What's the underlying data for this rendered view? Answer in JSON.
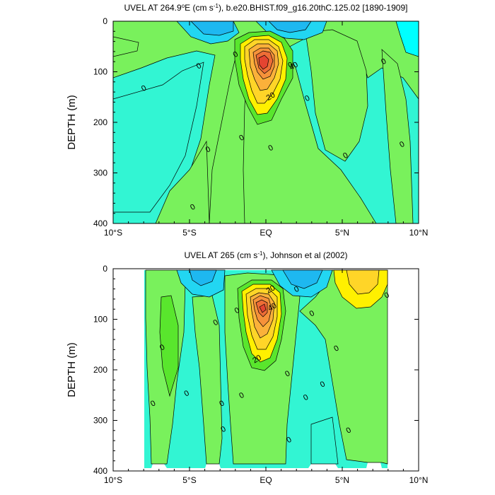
{
  "chart_data": [
    {
      "type": "contour",
      "title_prefix": "UVEL AT 264.9",
      "title_deg": "o",
      "title_mid": "E (cm s",
      "title_exp": "-1",
      "title_suffix": "), b.e20.BHIST.f09_g16.20thC.125.02 [1890-1909]",
      "ylabel": "DEPTH (m)",
      "ylim": [
        0,
        400
      ],
      "yticks": [
        "0",
        "100",
        "200",
        "300",
        "400"
      ],
      "xticks": [
        "10°S",
        "5°S",
        "EQ",
        "5°N",
        "10°N"
      ],
      "x_range": [
        -10,
        10
      ],
      "contour_labels": [
        {
          "text": "40",
          "lat": 1.8,
          "depth": 88
        },
        {
          "text": "20",
          "lat": 0.3,
          "depth": 148
        },
        {
          "text": "0",
          "lat": -8.0,
          "depth": 132
        },
        {
          "text": "0",
          "lat": -4.4,
          "depth": 88
        },
        {
          "text": "0",
          "lat": -2.0,
          "depth": 65
        },
        {
          "text": "0",
          "lat": 1.6,
          "depth": 86
        },
        {
          "text": "0",
          "lat": 2.7,
          "depth": 152
        },
        {
          "text": "0",
          "lat": -1.6,
          "depth": 230
        },
        {
          "text": "0",
          "lat": 0.3,
          "depth": 250
        },
        {
          "text": "0",
          "lat": -3.8,
          "depth": 253
        },
        {
          "text": "0",
          "lat": 5.2,
          "depth": 265
        },
        {
          "text": "0",
          "lat": -4.8,
          "depth": 367
        },
        {
          "text": "0",
          "lat": 7.7,
          "depth": 79
        },
        {
          "text": "0",
          "lat": 8.9,
          "depth": 243
        }
      ]
    },
    {
      "type": "contour",
      "title_prefix": "UVEL AT 265 (cm s",
      "title_exp": "-1",
      "title_suffix": "), Johnson et al (2002)",
      "ylabel": "DEPTH (m)",
      "ylim": [
        0,
        400
      ],
      "yticks": [
        "0",
        "100",
        "200",
        "300",
        "400"
      ],
      "xticks": [
        "10°S",
        "5°S",
        "EQ",
        "5°N",
        "10°N"
      ],
      "x_range": [
        -10,
        10
      ],
      "contour_labels": [
        {
          "text": "20",
          "lat": 0.3,
          "depth": 40
        },
        {
          "text": "40",
          "lat": 0.4,
          "depth": 75
        },
        {
          "text": "20",
          "lat": -0.6,
          "depth": 178
        },
        {
          "text": "0",
          "lat": -6.8,
          "depth": 155
        },
        {
          "text": "0",
          "lat": -3.3,
          "depth": 106
        },
        {
          "text": "0",
          "lat": -1.9,
          "depth": 82
        },
        {
          "text": "0",
          "lat": 2.0,
          "depth": 40
        },
        {
          "text": "0",
          "lat": 3.0,
          "depth": 88
        },
        {
          "text": "0",
          "lat": 4.6,
          "depth": 157
        },
        {
          "text": "0",
          "lat": 1.4,
          "depth": 207
        },
        {
          "text": "0",
          "lat": 3.7,
          "depth": 228
        },
        {
          "text": "0",
          "lat": 2.6,
          "depth": 254
        },
        {
          "text": "0",
          "lat": -1.6,
          "depth": 250
        },
        {
          "text": "0",
          "lat": -5.2,
          "depth": 246
        },
        {
          "text": "0",
          "lat": -7.4,
          "depth": 266
        },
        {
          "text": "0",
          "lat": -2.9,
          "depth": 266
        },
        {
          "text": "0",
          "lat": -2.8,
          "depth": 317
        },
        {
          "text": "0",
          "lat": 1.5,
          "depth": 338
        },
        {
          "text": "0",
          "lat": 5.4,
          "depth": 319
        },
        {
          "text": "0",
          "lat": 7.9,
          "depth": 52
        }
      ]
    }
  ]
}
